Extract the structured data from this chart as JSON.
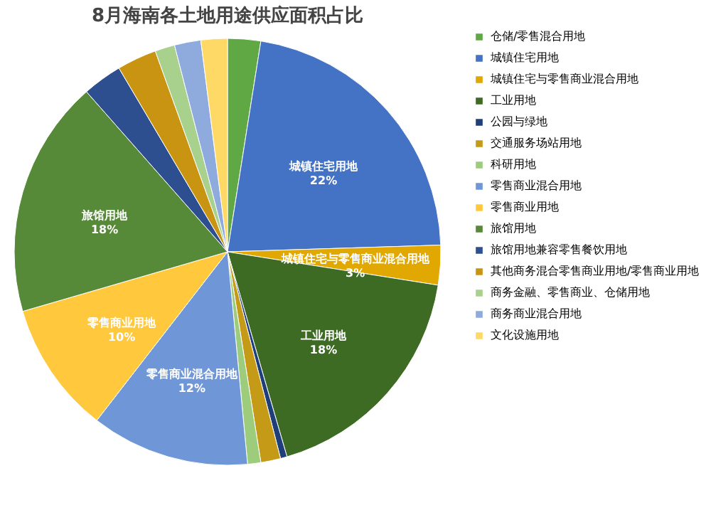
{
  "chart_data": {
    "type": "pie",
    "title": "8月海南各土地用途供应面积占比",
    "categories": [
      "仓储/零售混合用地",
      "城镇住宅用地",
      "城镇住宅与零售商业混合用地",
      "工业用地",
      "公园与绿地",
      "交通服务场站用地",
      "科研用地",
      "零售商业混合用地",
      "零售商业用地",
      "旅馆用地",
      "旅馆用地兼容零售餐饮用地",
      "其他商务混合零售商业用地/零售商业用地",
      "商务金融、零售商业、仓储用地",
      "商务商业混合用地",
      "文化设施用地"
    ],
    "values": [
      2.5,
      22,
      3,
      18,
      0.5,
      1.5,
      1,
      12,
      10,
      18,
      3,
      3,
      1.5,
      2,
      2
    ],
    "colors": [
      "#5fa843",
      "#4472c4",
      "#e0a800",
      "#3e6b24",
      "#1f3f7a",
      "#c59a16",
      "#9ccc7c",
      "#6f97d8",
      "#ffc83d",
      "#578a38",
      "#2d4f8f",
      "#c99412",
      "#a9d18e",
      "#8faadc",
      "#ffd966"
    ],
    "value_labels": [
      null,
      "22%",
      "3%",
      "18%",
      null,
      null,
      null,
      "12%",
      "10%",
      "18%",
      null,
      null,
      null,
      null,
      null
    ],
    "legend": "right"
  }
}
